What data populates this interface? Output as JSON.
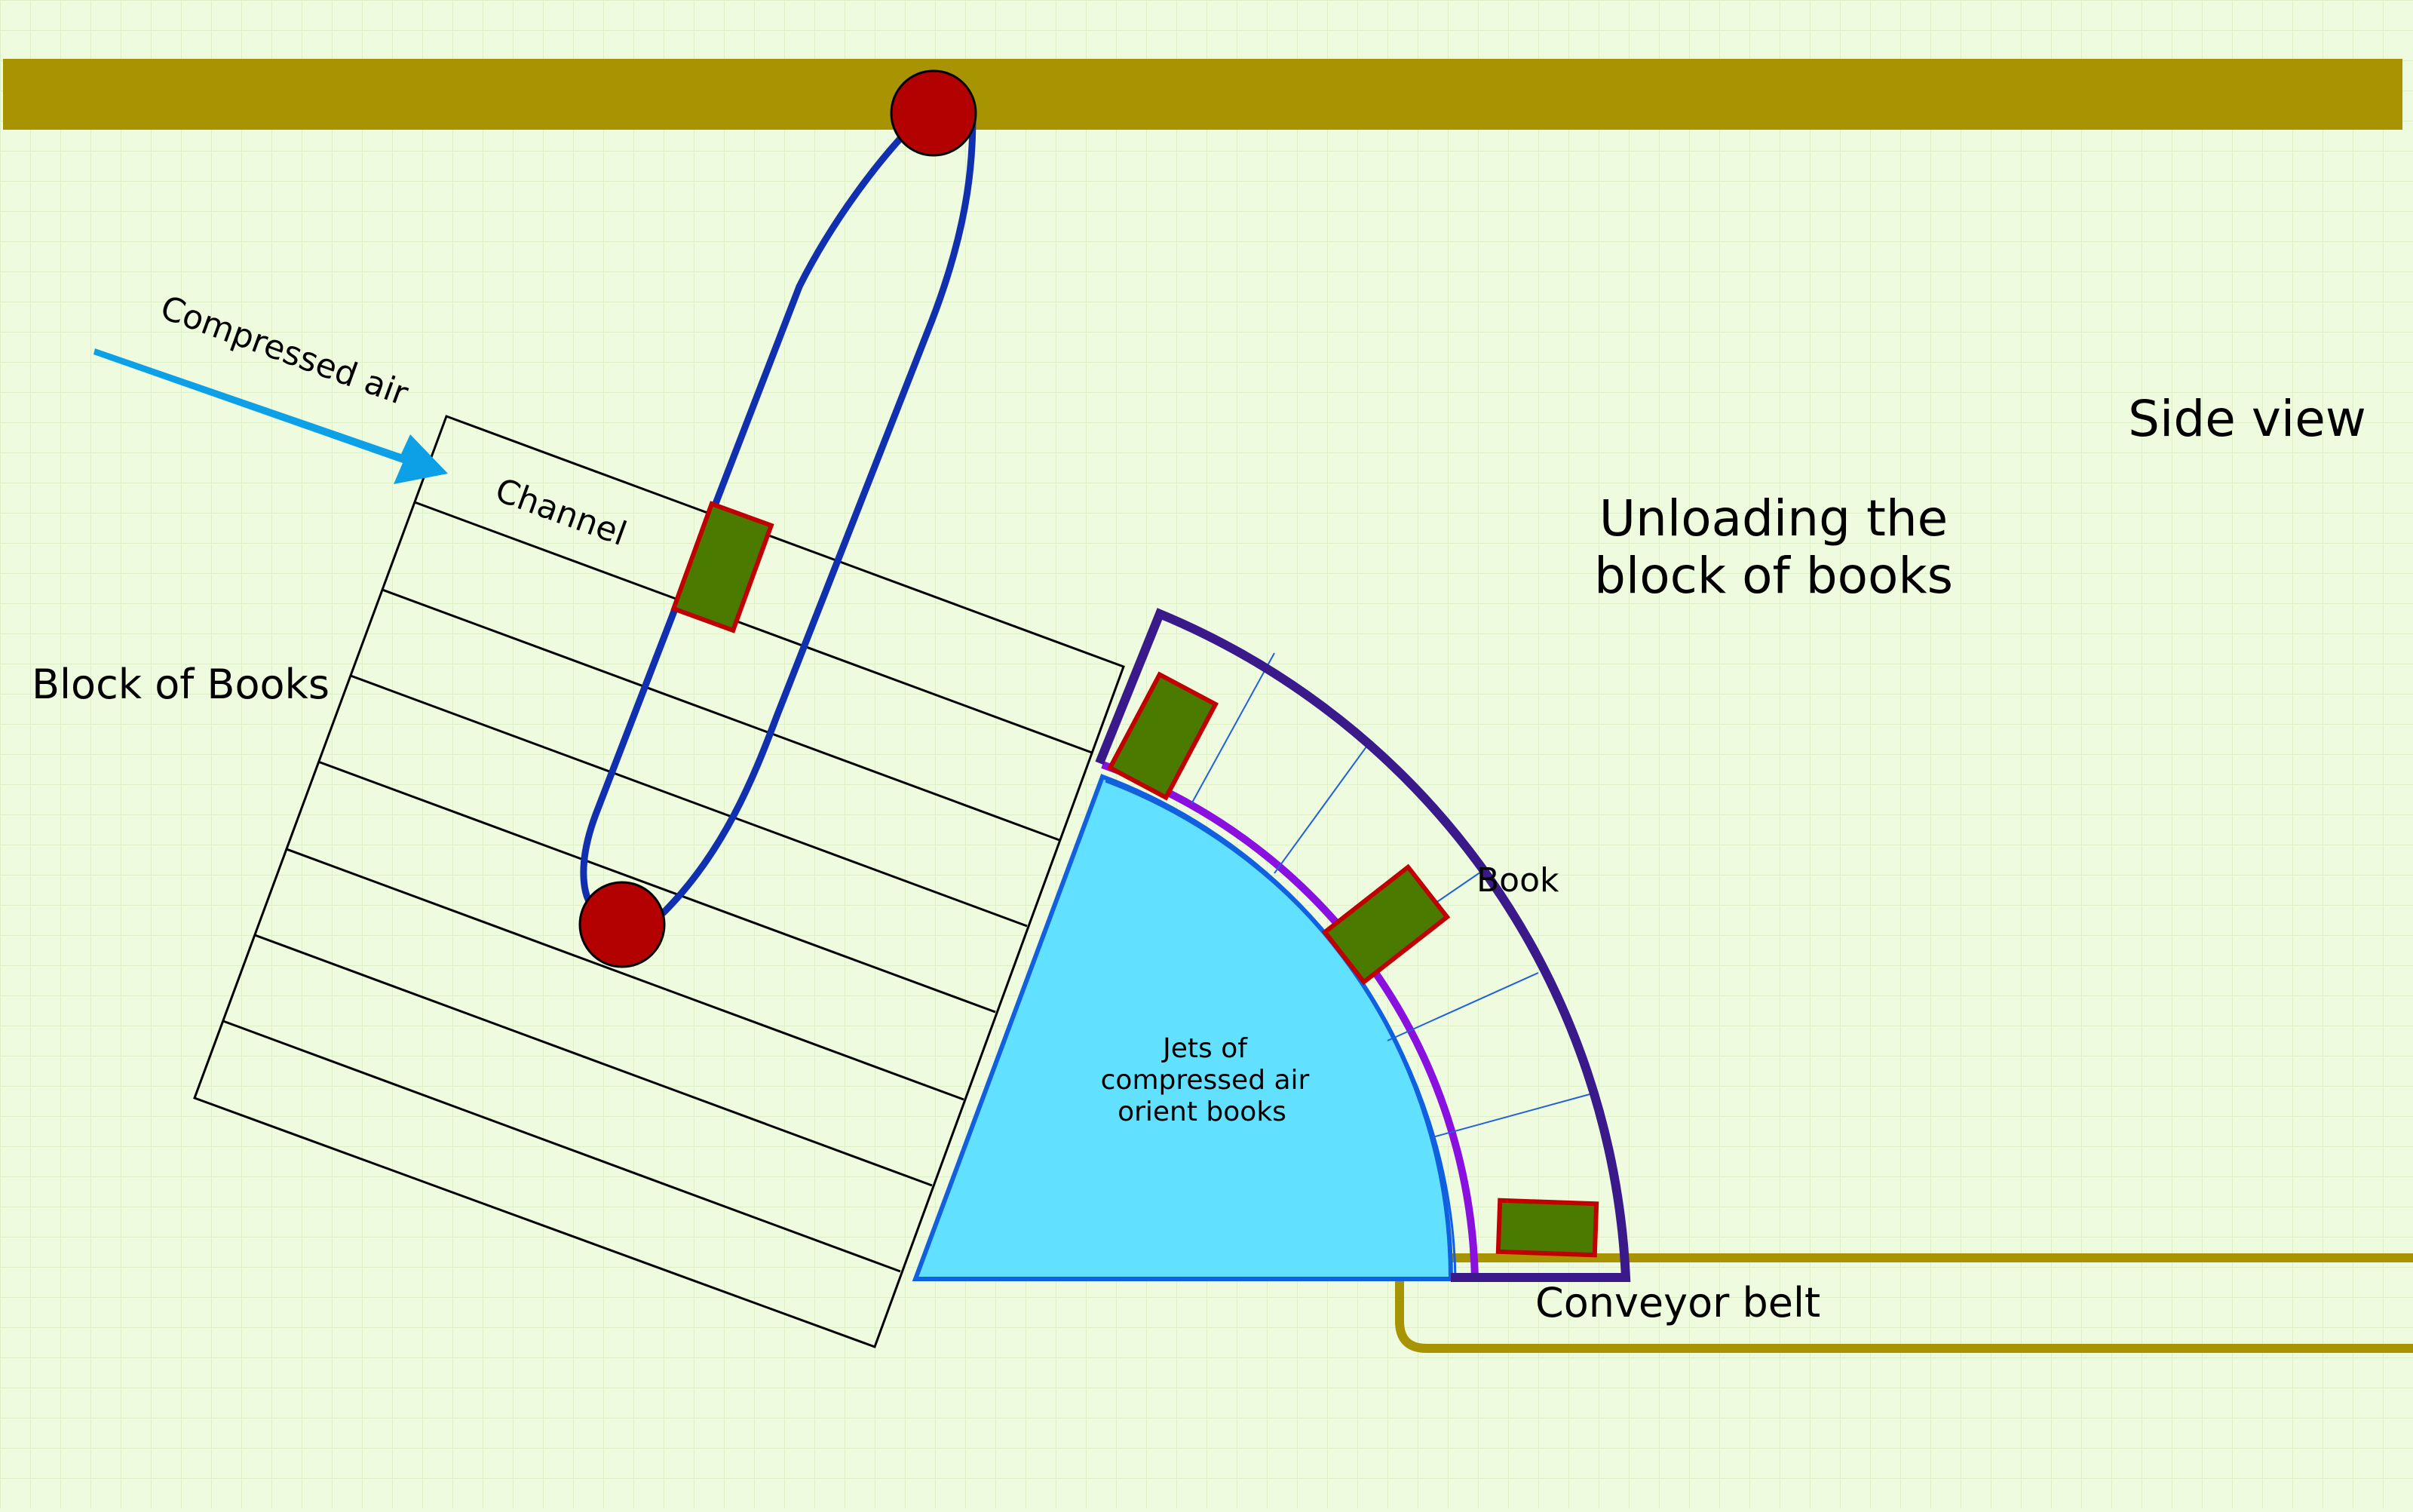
{
  "labels": {
    "side_view": "Side view",
    "title_line1": "Unloading the",
    "title_line2": "block of books",
    "block_of_books": "Block of Books",
    "compressed_air": "Compressed air",
    "channel": "Channel",
    "book": "Book",
    "jets_line1": "Jets of",
    "jets_line2": "compressed air",
    "jets_line3": "orient books",
    "conveyor_belt": "Conveyor belt"
  },
  "colors": {
    "background": "#eefbdf",
    "grid": "#dcefc8",
    "rail": "#a89300",
    "pulley": "#b30000",
    "belt_loop": "#1030b0",
    "air_arrow": "#0ea0e6",
    "jets_fill": "#62e0ff",
    "jets_edge": "#1060e0",
    "inner_arc": "#8a10e0",
    "outer_frame": "#3a1a8a",
    "book_fill": "#4a7a00",
    "book_edge": "#c00000",
    "conveyor": "#a89300"
  },
  "icons": {
    "pulley": "pulley-icon",
    "book": "book-icon",
    "arrow": "air-arrow-icon"
  }
}
